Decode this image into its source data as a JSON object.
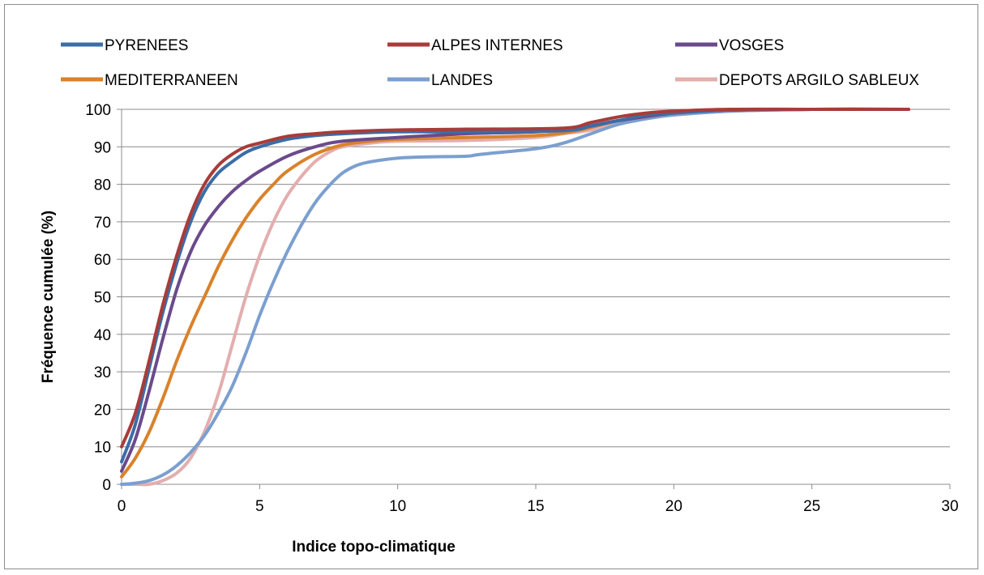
{
  "chart_data": {
    "type": "line",
    "title": "",
    "xlabel": "Indice topo-climatique",
    "ylabel": "Fréquence cumulée (%)",
    "xlim": [
      0,
      30
    ],
    "ylim": [
      0,
      100
    ],
    "xticks": [
      0,
      5,
      10,
      15,
      20,
      25,
      30
    ],
    "yticks": [
      0,
      10,
      20,
      30,
      40,
      50,
      60,
      70,
      80,
      90,
      100
    ],
    "grid": "horizontal",
    "legend_position": "top",
    "series": [
      {
        "name": "PYRENEES",
        "color": "#3b6da6",
        "points": [
          [
            0,
            6
          ],
          [
            0.5,
            16
          ],
          [
            1,
            31
          ],
          [
            1.5,
            46
          ],
          [
            2,
            59
          ],
          [
            2.5,
            70
          ],
          [
            3,
            78
          ],
          [
            3.5,
            83
          ],
          [
            4,
            86
          ],
          [
            4.5,
            88.5
          ],
          [
            5,
            90
          ],
          [
            6,
            92
          ],
          [
            7,
            93
          ],
          [
            8,
            93.5
          ],
          [
            10,
            94
          ],
          [
            12.5,
            94
          ],
          [
            16,
            94.3
          ],
          [
            17,
            95.5
          ],
          [
            18,
            97
          ],
          [
            19,
            98.5
          ],
          [
            20,
            99
          ],
          [
            22,
            99.8
          ],
          [
            25,
            100
          ],
          [
            28.5,
            100
          ]
        ]
      },
      {
        "name": "ALPES INTERNES",
        "color": "#a83c3a",
        "points": [
          [
            0,
            10
          ],
          [
            0.5,
            19
          ],
          [
            1,
            33
          ],
          [
            1.5,
            48
          ],
          [
            2,
            61
          ],
          [
            2.5,
            72
          ],
          [
            3,
            80
          ],
          [
            3.5,
            85
          ],
          [
            4,
            88
          ],
          [
            4.5,
            90
          ],
          [
            5,
            91
          ],
          [
            6,
            92.8
          ],
          [
            7,
            93.5
          ],
          [
            8,
            94
          ],
          [
            10,
            94.5
          ],
          [
            12.5,
            94.7
          ],
          [
            16,
            95
          ],
          [
            17,
            96.5
          ],
          [
            18,
            98
          ],
          [
            19,
            99
          ],
          [
            20,
            99.5
          ],
          [
            22,
            100
          ],
          [
            25,
            100
          ],
          [
            28.5,
            100
          ]
        ]
      },
      {
        "name": "VOSGES",
        "color": "#6a4a8c",
        "points": [
          [
            0,
            3.5
          ],
          [
            0.5,
            12
          ],
          [
            1,
            25
          ],
          [
            1.5,
            39
          ],
          [
            2,
            52
          ],
          [
            2.5,
            62
          ],
          [
            3,
            69
          ],
          [
            3.5,
            74
          ],
          [
            4,
            78
          ],
          [
            4.5,
            81
          ],
          [
            5,
            83.5
          ],
          [
            6,
            87.5
          ],
          [
            7,
            90
          ],
          [
            8,
            91.5
          ],
          [
            10,
            92.5
          ],
          [
            12.5,
            93.5
          ],
          [
            15,
            94
          ],
          [
            16.5,
            95
          ],
          [
            18,
            97
          ],
          [
            20,
            99
          ],
          [
            22,
            99.8
          ],
          [
            25,
            100
          ],
          [
            28.5,
            100
          ]
        ]
      },
      {
        "name": "MEDITERRANEEN",
        "color": "#d9822b",
        "points": [
          [
            0,
            2
          ],
          [
            0.5,
            7
          ],
          [
            1,
            14
          ],
          [
            1.5,
            23
          ],
          [
            2,
            33
          ],
          [
            2.5,
            42
          ],
          [
            3,
            50
          ],
          [
            3.5,
            58
          ],
          [
            4,
            65
          ],
          [
            4.5,
            71
          ],
          [
            5,
            76
          ],
          [
            5.5,
            80
          ],
          [
            6,
            83.5
          ],
          [
            7,
            88
          ],
          [
            8,
            90.5
          ],
          [
            9,
            91.5
          ],
          [
            10,
            92
          ],
          [
            12.5,
            92.5
          ],
          [
            15,
            93
          ],
          [
            16.5,
            94.3
          ],
          [
            18,
            97
          ],
          [
            20,
            99
          ],
          [
            22,
            99.8
          ],
          [
            25,
            100
          ],
          [
            28.5,
            100
          ]
        ]
      },
      {
        "name": "LANDES",
        "color": "#7b9fcf",
        "points": [
          [
            0,
            0
          ],
          [
            0.5,
            0.3
          ],
          [
            1,
            1
          ],
          [
            1.5,
            2.5
          ],
          [
            2,
            5
          ],
          [
            2.5,
            8.5
          ],
          [
            3,
            13
          ],
          [
            3.5,
            19
          ],
          [
            4,
            26
          ],
          [
            4.5,
            35
          ],
          [
            5,
            45
          ],
          [
            5.5,
            54
          ],
          [
            6,
            62
          ],
          [
            6.5,
            69
          ],
          [
            7,
            75
          ],
          [
            7.5,
            79.5
          ],
          [
            8,
            83
          ],
          [
            8.5,
            85
          ],
          [
            9,
            86
          ],
          [
            10,
            87
          ],
          [
            11,
            87.3
          ],
          [
            12.5,
            87.5
          ],
          [
            13,
            88
          ],
          [
            15,
            89.5
          ],
          [
            16,
            91
          ],
          [
            17,
            93.5
          ],
          [
            18,
            96
          ],
          [
            19,
            97.5
          ],
          [
            20,
            98.5
          ],
          [
            22,
            99.5
          ],
          [
            25,
            100
          ],
          [
            28.5,
            100
          ]
        ]
      },
      {
        "name": "DEPOTS ARGILO SABLEUX",
        "color": "#e3aeae",
        "points": [
          [
            0,
            0
          ],
          [
            0.5,
            0
          ],
          [
            1,
            0
          ],
          [
            1.5,
            1
          ],
          [
            2,
            3
          ],
          [
            2.5,
            7
          ],
          [
            3,
            14
          ],
          [
            3.5,
            24
          ],
          [
            4,
            37
          ],
          [
            4.5,
            50
          ],
          [
            5,
            61
          ],
          [
            5.5,
            70
          ],
          [
            6,
            77
          ],
          [
            6.5,
            82
          ],
          [
            7,
            86
          ],
          [
            7.5,
            88.5
          ],
          [
            8,
            90
          ],
          [
            9,
            91
          ],
          [
            10,
            91.5
          ],
          [
            12.5,
            91.7
          ],
          [
            15,
            92.5
          ],
          [
            16,
            93.5
          ],
          [
            17,
            94.5
          ],
          [
            18,
            96.5
          ],
          [
            19,
            97.8
          ],
          [
            20,
            98.5
          ],
          [
            22,
            99.5
          ],
          [
            25,
            100
          ],
          [
            28.5,
            100
          ]
        ]
      }
    ]
  }
}
